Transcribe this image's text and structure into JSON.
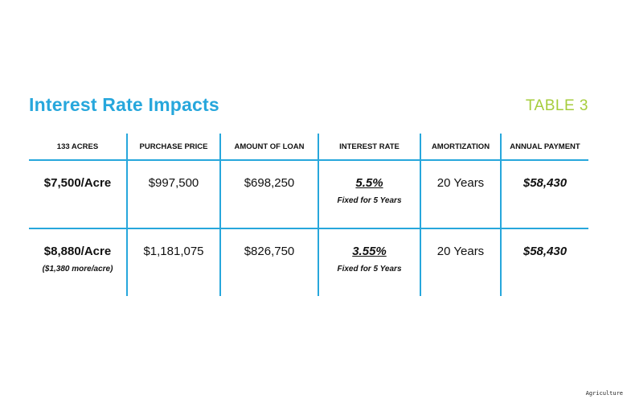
{
  "title": "Interest Rate Impacts",
  "table_label": "TABLE 3",
  "headers": [
    "133 ACRES",
    "PURCHASE PRICE",
    "AMOUNT OF LOAN",
    "INTEREST RATE",
    "AMORTIZATION",
    "ANNUAL PAYMENT"
  ],
  "rows": [
    {
      "acre_price": "$7,500/Acre",
      "acre_note": "",
      "purchase_price": "$997,500",
      "loan_amount": "$698,250",
      "interest_rate": "5.5%",
      "rate_note": "Fixed for 5 Years",
      "amortization": "20 Years",
      "annual_payment": "$58,430"
    },
    {
      "acre_price": "$8,880/Acre",
      "acre_note": "($1,380 more/acre)",
      "purchase_price": "$1,181,075",
      "loan_amount": "$826,750",
      "interest_rate": "3.55%",
      "rate_note": "Fixed for 5 Years",
      "amortization": "20 Years",
      "annual_payment": "$58,430"
    }
  ],
  "footer": "Agriculture",
  "colors": {
    "accent_blue": "#27a7dc",
    "accent_green": "#a6cd3c"
  }
}
